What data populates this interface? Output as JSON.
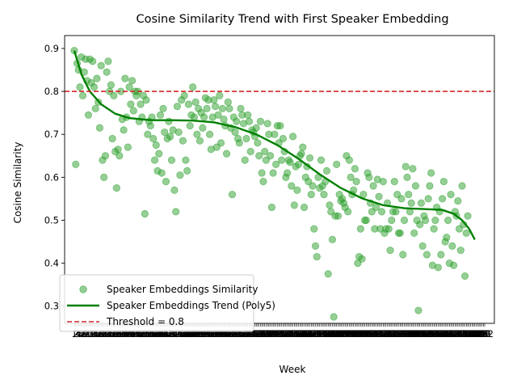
{
  "chart_data": {
    "type": "scatter",
    "title": "Cosine Similarity Trend with First Speaker Embedding",
    "xlabel": "Week",
    "ylabel": "Cosine Similarity",
    "xlim": [
      1,
      292
    ],
    "ylim": [
      0.26,
      0.93
    ],
    "yticks": [
      0.3,
      0.4,
      0.5,
      0.6,
      0.7,
      0.8,
      0.9
    ],
    "xtick_count": 292,
    "first_xtick_label": "1",
    "last_xtick_label": "292",
    "grid": false,
    "legend_position": "lower-left",
    "colors": {
      "points": "#2ca02c",
      "trend": "#008000",
      "threshold": "#d62728"
    },
    "series": [
      {
        "name": "Speaker Embeddings Similarity",
        "kind": "scatter",
        "points": [
          [
            1,
            0.895
          ],
          [
            2,
            0.63
          ],
          [
            3,
            0.865
          ],
          [
            4,
            0.85
          ],
          [
            5,
            0.81
          ],
          [
            6,
            0.88
          ],
          [
            7,
            0.79
          ],
          [
            8,
            0.845
          ],
          [
            9,
            0.875
          ],
          [
            10,
            0.825
          ],
          [
            11,
            0.745
          ],
          [
            12,
            0.875
          ],
          [
            13,
            0.82
          ],
          [
            14,
            0.87
          ],
          [
            15,
            0.81
          ],
          [
            16,
            0.76
          ],
          [
            17,
            0.83
          ],
          [
            18,
            0.775
          ],
          [
            19,
            0.715
          ],
          [
            20,
            0.86
          ],
          [
            21,
            0.64
          ],
          [
            22,
            0.6
          ],
          [
            23,
            0.65
          ],
          [
            24,
            0.845
          ],
          [
            25,
            0.87
          ],
          [
            26,
            0.8
          ],
          [
            27,
            0.815
          ],
          [
            28,
            0.69
          ],
          [
            29,
            0.79
          ],
          [
            30,
            0.66
          ],
          [
            31,
            0.575
          ],
          [
            32,
            0.665
          ],
          [
            33,
            0.65
          ],
          [
            34,
            0.8
          ],
          [
            35,
            0.735
          ],
          [
            36,
            0.71
          ],
          [
            37,
            0.83
          ],
          [
            38,
            0.74
          ],
          [
            39,
            0.67
          ],
          [
            40,
            0.81
          ],
          [
            41,
            0.77
          ],
          [
            42,
            0.825
          ],
          [
            43,
            0.755
          ],
          [
            44,
            0.8
          ],
          [
            45,
            0.79
          ],
          [
            46,
            0.8
          ],
          [
            47,
            0.73
          ],
          [
            48,
            0.77
          ],
          [
            49,
            0.74
          ],
          [
            50,
            0.79
          ],
          [
            51,
            0.515
          ],
          [
            52,
            0.78
          ],
          [
            53,
            0.7
          ],
          [
            54,
            0.73
          ],
          [
            55,
            0.72
          ],
          [
            56,
            0.74
          ],
          [
            57,
            0.69
          ],
          [
            58,
            0.64
          ],
          [
            59,
            0.675
          ],
          [
            60,
            0.615
          ],
          [
            61,
            0.655
          ],
          [
            62,
            0.745
          ],
          [
            63,
            0.61
          ],
          [
            64,
            0.76
          ],
          [
            65,
            0.705
          ],
          [
            66,
            0.59
          ],
          [
            67,
            0.69
          ],
          [
            68,
            0.73
          ],
          [
            69,
            0.695
          ],
          [
            70,
            0.64
          ],
          [
            71,
            0.71
          ],
          [
            72,
            0.57
          ],
          [
            73,
            0.52
          ],
          [
            74,
            0.765
          ],
          [
            75,
            0.705
          ],
          [
            76,
            0.605
          ],
          [
            77,
            0.78
          ],
          [
            78,
            0.685
          ],
          [
            79,
            0.79
          ],
          [
            80,
            0.64
          ],
          [
            81,
            0.615
          ],
          [
            82,
            0.77
          ],
          [
            83,
            0.72
          ],
          [
            84,
            0.745
          ],
          [
            85,
            0.81
          ],
          [
            86,
            0.74
          ],
          [
            87,
            0.775
          ],
          [
            88,
            0.7
          ],
          [
            89,
            0.76
          ],
          [
            90,
            0.685
          ],
          [
            91,
            0.75
          ],
          [
            92,
            0.715
          ],
          [
            93,
            0.74
          ],
          [
            94,
            0.785
          ],
          [
            95,
            0.76
          ],
          [
            96,
            0.78
          ],
          [
            97,
            0.7
          ],
          [
            98,
            0.665
          ],
          [
            99,
            0.74
          ],
          [
            100,
            0.78
          ],
          [
            101,
            0.765
          ],
          [
            102,
            0.67
          ],
          [
            103,
            0.745
          ],
          [
            104,
            0.79
          ],
          [
            105,
            0.68
          ],
          [
            106,
            0.76
          ],
          [
            107,
            0.735
          ],
          [
            108,
            0.72
          ],
          [
            109,
            0.655
          ],
          [
            110,
            0.775
          ],
          [
            111,
            0.76
          ],
          [
            112,
            0.715
          ],
          [
            113,
            0.56
          ],
          [
            114,
            0.74
          ],
          [
            115,
            0.705
          ],
          [
            116,
            0.73
          ],
          [
            117,
            0.69
          ],
          [
            118,
            0.68
          ],
          [
            119,
            0.76
          ],
          [
            120,
            0.745
          ],
          [
            121,
            0.725
          ],
          [
            122,
            0.64
          ],
          [
            123,
            0.69
          ],
          [
            124,
            0.745
          ],
          [
            125,
            0.73
          ],
          [
            126,
            0.66
          ],
          [
            127,
            0.71
          ],
          [
            128,
            0.705
          ],
          [
            129,
            0.695
          ],
          [
            130,
            0.715
          ],
          [
            131,
            0.68
          ],
          [
            132,
            0.65
          ],
          [
            133,
            0.73
          ],
          [
            134,
            0.61
          ],
          [
            135,
            0.59
          ],
          [
            136,
            0.66
          ],
          [
            137,
            0.64
          ],
          [
            138,
            0.725
          ],
          [
            139,
            0.7
          ],
          [
            140,
            0.65
          ],
          [
            141,
            0.53
          ],
          [
            142,
            0.61
          ],
          [
            143,
            0.7
          ],
          [
            144,
            0.63
          ],
          [
            145,
            0.72
          ],
          [
            146,
            0.68
          ],
          [
            147,
            0.72
          ],
          [
            148,
            0.64
          ],
          [
            149,
            0.69
          ],
          [
            150,
            0.66
          ],
          [
            151,
            0.6
          ],
          [
            152,
            0.61
          ],
          [
            153,
            0.64
          ],
          [
            154,
            0.635
          ],
          [
            155,
            0.58
          ],
          [
            156,
            0.695
          ],
          [
            157,
            0.535
          ],
          [
            158,
            0.625
          ],
          [
            159,
            0.57
          ],
          [
            160,
            0.63
          ],
          [
            161,
            0.65
          ],
          [
            162,
            0.655
          ],
          [
            163,
            0.67
          ],
          [
            164,
            0.53
          ],
          [
            165,
            0.6
          ],
          [
            166,
            0.625
          ],
          [
            167,
            0.59
          ],
          [
            168,
            0.645
          ],
          [
            169,
            0.56
          ],
          [
            170,
            0.58
          ],
          [
            171,
            0.48
          ],
          [
            172,
            0.44
          ],
          [
            173,
            0.415
          ],
          [
            174,
            0.6
          ],
          [
            175,
            0.575
          ],
          [
            176,
            0.64
          ],
          [
            177,
            0.58
          ],
          [
            178,
            0.56
          ],
          [
            179,
            0.59
          ],
          [
            180,
            0.615
          ],
          [
            181,
            0.375
          ],
          [
            182,
            0.535
          ],
          [
            183,
            0.52
          ],
          [
            184,
            0.455
          ],
          [
            185,
            0.275
          ],
          [
            186,
            0.51
          ],
          [
            187,
            0.63
          ],
          [
            188,
            0.51
          ],
          [
            189,
            0.56
          ],
          [
            190,
            0.545
          ],
          [
            191,
            0.55
          ],
          [
            192,
            0.54
          ],
          [
            193,
            0.53
          ],
          [
            194,
            0.65
          ],
          [
            195,
            0.52
          ],
          [
            196,
            0.64
          ],
          [
            197,
            0.6
          ],
          [
            198,
            0.56
          ],
          [
            199,
            0.57
          ],
          [
            200,
            0.62
          ],
          [
            201,
            0.59
          ],
          [
            202,
            0.4
          ],
          [
            203,
            0.415
          ],
          [
            204,
            0.48
          ],
          [
            205,
            0.41
          ],
          [
            206,
            0.56
          ],
          [
            207,
            0.5
          ],
          [
            208,
            0.5
          ],
          [
            209,
            0.61
          ],
          [
            210,
            0.6
          ],
          [
            211,
            0.54
          ],
          [
            212,
            0.52
          ],
          [
            213,
            0.58
          ],
          [
            214,
            0.48
          ],
          [
            215,
            0.53
          ],
          [
            216,
            0.595
          ],
          [
            217,
            0.555
          ],
          [
            218,
            0.48
          ],
          [
            219,
            0.52
          ],
          [
            220,
            0.59
          ],
          [
            221,
            0.47
          ],
          [
            222,
            0.48
          ],
          [
            223,
            0.54
          ],
          [
            224,
            0.48
          ],
          [
            225,
            0.43
          ],
          [
            226,
            0.5
          ],
          [
            227,
            0.52
          ],
          [
            228,
            0.59
          ],
          [
            229,
            0.52
          ],
          [
            230,
            0.56
          ],
          [
            231,
            0.47
          ],
          [
            232,
            0.47
          ],
          [
            233,
            0.55
          ],
          [
            234,
            0.42
          ],
          [
            235,
            0.5
          ],
          [
            236,
            0.625
          ],
          [
            237,
            0.6
          ],
          [
            238,
            0.56
          ],
          [
            239,
            0.52
          ],
          [
            240,
            0.54
          ],
          [
            241,
            0.62
          ],
          [
            242,
            0.47
          ],
          [
            243,
            0.58
          ],
          [
            244,
            0.5
          ],
          [
            245,
            0.29
          ],
          [
            246,
            0.49
          ],
          [
            247,
            0.54
          ],
          [
            248,
            0.44
          ],
          [
            249,
            0.51
          ],
          [
            250,
            0.5
          ],
          [
            251,
            0.42
          ],
          [
            252,
            0.55
          ],
          [
            253,
            0.58
          ],
          [
            254,
            0.61
          ],
          [
            255,
            0.395
          ],
          [
            256,
            0.48
          ],
          [
            257,
            0.5
          ],
          [
            258,
            0.53
          ],
          [
            259,
            0.39
          ],
          [
            260,
            0.52
          ],
          [
            261,
            0.42
          ],
          [
            262,
            0.55
          ],
          [
            263,
            0.59
          ],
          [
            264,
            0.45
          ],
          [
            265,
            0.46
          ],
          [
            266,
            0.5
          ],
          [
            267,
            0.4
          ],
          [
            268,
            0.56
          ],
          [
            269,
            0.44
          ],
          [
            270,
            0.395
          ],
          [
            271,
            0.52
          ],
          [
            272,
            0.51
          ],
          [
            273,
            0.545
          ],
          [
            274,
            0.48
          ],
          [
            275,
            0.43
          ],
          [
            276,
            0.58
          ],
          [
            277,
            0.49
          ],
          [
            278,
            0.37
          ],
          [
            279,
            0.47
          ],
          [
            280,
            0.51
          ]
        ]
      },
      {
        "name": "Speaker Embeddings Trend (Poly5)",
        "kind": "line",
        "points": [
          [
            1,
            0.895
          ],
          [
            6,
            0.84
          ],
          [
            12,
            0.8
          ],
          [
            20,
            0.77
          ],
          [
            30,
            0.748
          ],
          [
            40,
            0.738
          ],
          [
            55,
            0.733
          ],
          [
            70,
            0.733
          ],
          [
            85,
            0.732
          ],
          [
            100,
            0.728
          ],
          [
            115,
            0.717
          ],
          [
            130,
            0.7
          ],
          [
            145,
            0.675
          ],
          [
            160,
            0.643
          ],
          [
            175,
            0.607
          ],
          [
            190,
            0.575
          ],
          [
            205,
            0.551
          ],
          [
            220,
            0.535
          ],
          [
            235,
            0.528
          ],
          [
            250,
            0.526
          ],
          [
            262,
            0.524
          ],
          [
            270,
            0.515
          ],
          [
            276,
            0.5
          ],
          [
            281,
            0.48
          ],
          [
            285,
            0.455
          ]
        ]
      },
      {
        "name": "Threshold = 0.8",
        "kind": "hline",
        "y": 0.8
      }
    ]
  }
}
